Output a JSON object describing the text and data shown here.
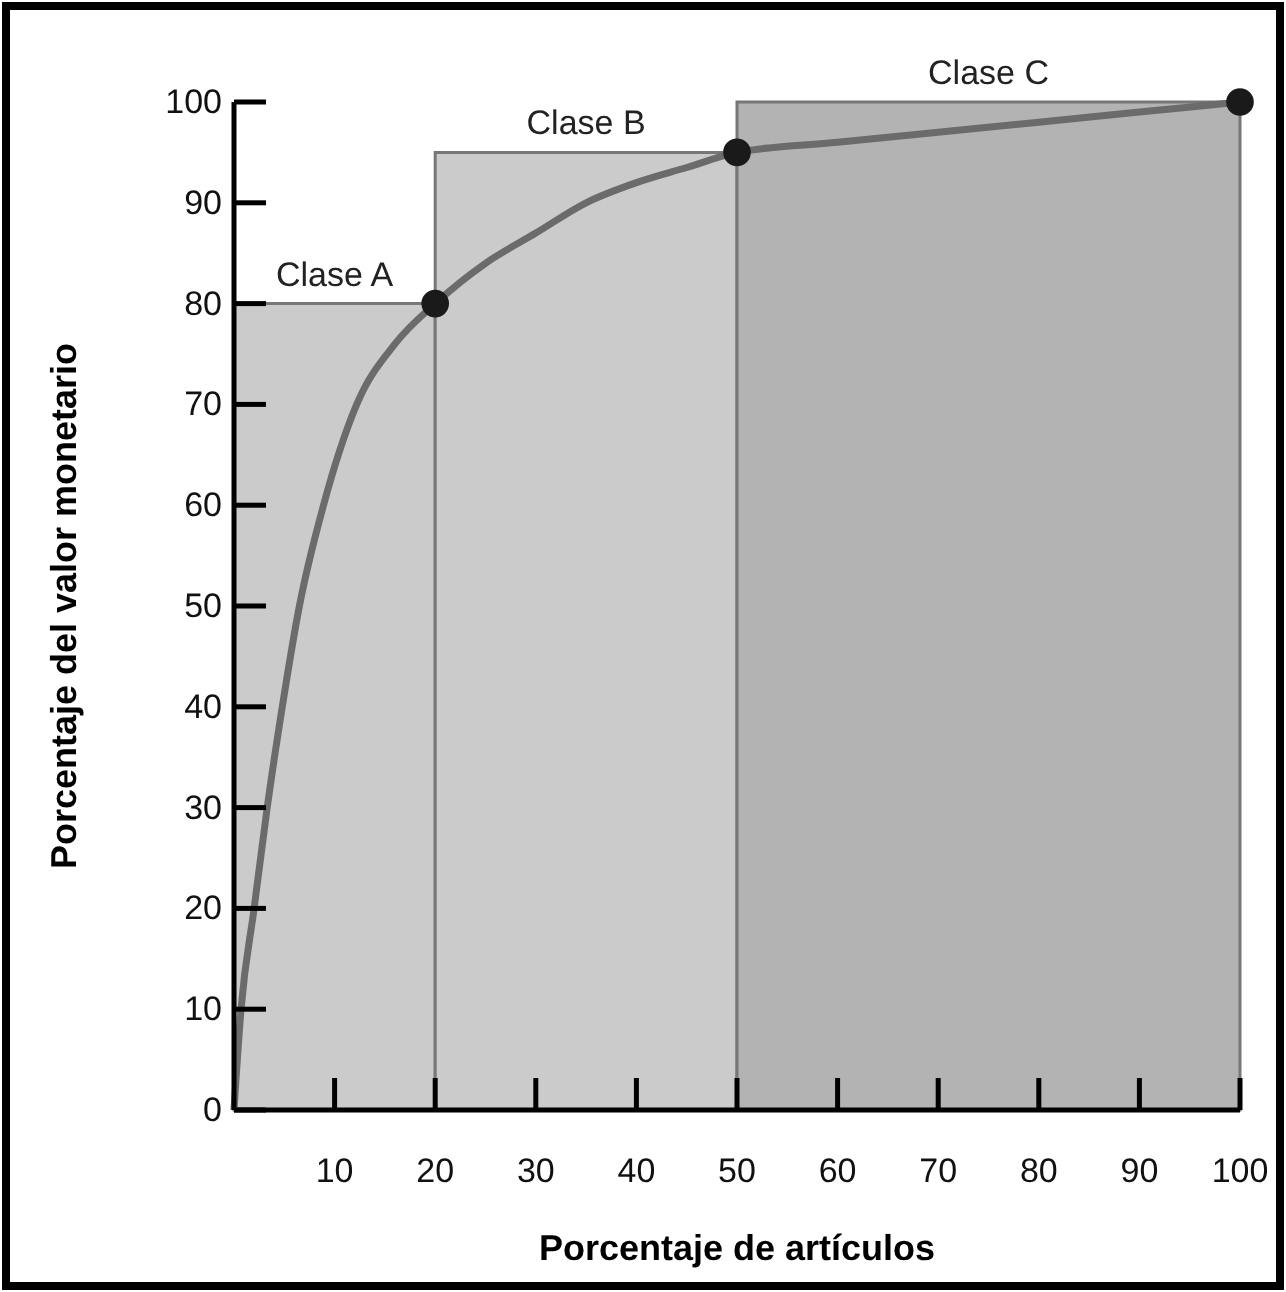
{
  "chart_data": {
    "type": "area",
    "xlabel": "Porcentaje de artículos",
    "ylabel": "Porcentaje del valor monetario",
    "xlim": [
      0,
      100
    ],
    "ylim": [
      0,
      100
    ],
    "xticks": [
      10,
      20,
      30,
      40,
      50,
      60,
      70,
      80,
      90,
      100
    ],
    "yticks": [
      0,
      10,
      20,
      30,
      40,
      50,
      60,
      70,
      80,
      90,
      100
    ],
    "grid": false,
    "series": [
      {
        "name": "Clase A",
        "color": "#cbcbcb",
        "x": [
          0,
          20
        ],
        "values": [
          80,
          80
        ]
      },
      {
        "name": "Clase B",
        "color": "#cbcbcb",
        "x": [
          20,
          50
        ],
        "values": [
          95,
          95
        ]
      },
      {
        "name": "Clase C",
        "color": "#b3b3b3",
        "x": [
          50,
          100
        ],
        "values": [
          100,
          100
        ]
      },
      {
        "type": "line",
        "color": "#6b6b6b",
        "marker": "none",
        "x": [
          0,
          0.7,
          2,
          3.3,
          4.8,
          6.5,
          8.9,
          12.2,
          16,
          20,
          25,
          30,
          35,
          40,
          45,
          50,
          60,
          70,
          80,
          90,
          100
        ],
        "values": [
          0,
          10,
          20,
          30,
          40,
          50,
          60,
          70,
          76,
          80,
          84,
          87,
          90,
          92,
          93.5,
          95,
          96,
          97,
          98,
          99,
          100
        ]
      },
      {
        "type": "scatter",
        "color": "#1a1a1a",
        "marker": "circle",
        "x": [
          20,
          50,
          100
        ],
        "values": [
          80,
          95,
          100
        ]
      }
    ]
  }
}
